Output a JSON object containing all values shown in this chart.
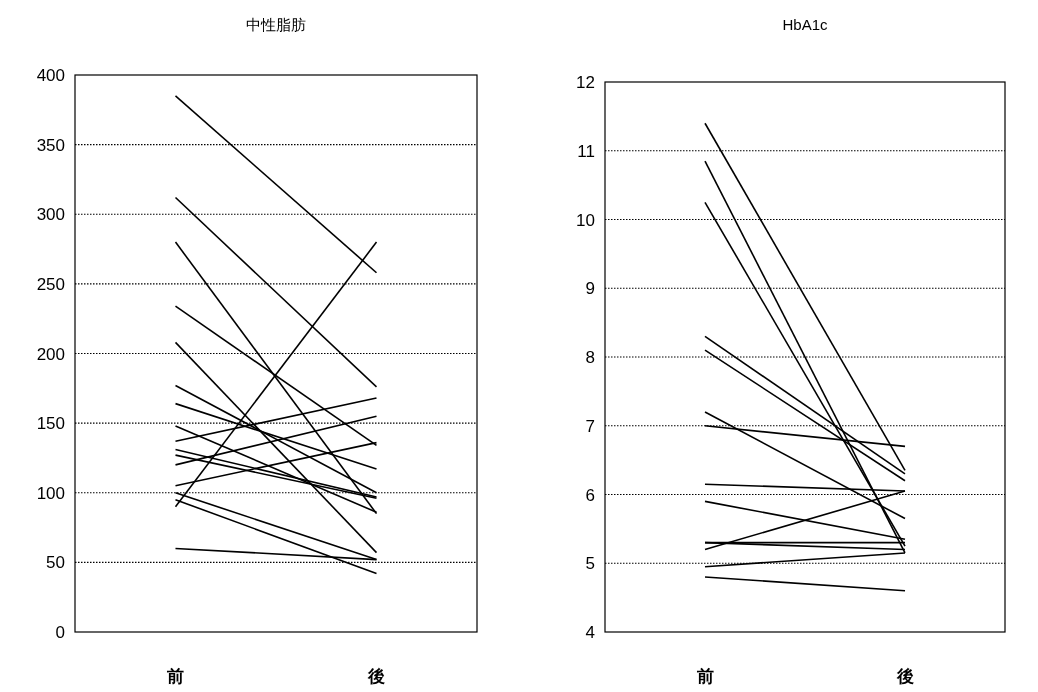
{
  "chart_data": [
    {
      "type": "line",
      "title": "中性脂肪",
      "categories": [
        "前",
        "後"
      ],
      "ylim": [
        0,
        400
      ],
      "yticks": [
        0,
        50,
        100,
        150,
        200,
        250,
        300,
        350,
        400
      ],
      "grid": "y",
      "series": [
        {
          "color": "#000000",
          "values": [
            385,
            258
          ]
        },
        {
          "color": "#000000",
          "values": [
            312,
            176
          ]
        },
        {
          "color": "#000000",
          "values": [
            280,
            85
          ]
        },
        {
          "color": "#000000",
          "values": [
            234,
            134
          ]
        },
        {
          "color": "#000000",
          "values": [
            208,
            57
          ]
        },
        {
          "color": "#000000",
          "values": [
            177,
            100
          ]
        },
        {
          "color": "#000000",
          "values": [
            164,
            117
          ]
        },
        {
          "color": "#000000",
          "values": [
            148,
            86
          ]
        },
        {
          "color": "#000000",
          "values": [
            137,
            168
          ]
        },
        {
          "color": "#000000",
          "values": [
            131,
            97
          ]
        },
        {
          "color": "#000000",
          "values": [
            127,
            96
          ]
        },
        {
          "color": "#000000",
          "values": [
            120,
            155
          ]
        },
        {
          "color": "#000000",
          "values": [
            105,
            136
          ]
        },
        {
          "color": "#000000",
          "values": [
            100,
            52
          ]
        },
        {
          "color": "#000000",
          "values": [
            95,
            42
          ]
        },
        {
          "color": "#000000",
          "values": [
            90,
            280
          ]
        },
        {
          "color": "#000000",
          "values": [
            60,
            52
          ]
        }
      ]
    },
    {
      "type": "line",
      "title": "HbA1c",
      "categories": [
        "前",
        "後"
      ],
      "ylim": [
        4,
        12
      ],
      "yticks": [
        4,
        5,
        6,
        7,
        8,
        9,
        10,
        11,
        12
      ],
      "grid": "y",
      "series": [
        {
          "color": "#000000",
          "values": [
            11.4,
            6.35
          ]
        },
        {
          "color": "#000000",
          "values": [
            10.85,
            5.15
          ]
        },
        {
          "color": "#000000",
          "values": [
            10.25,
            5.25
          ]
        },
        {
          "color": "#000000",
          "values": [
            8.3,
            6.3
          ]
        },
        {
          "color": "#000000",
          "values": [
            8.1,
            6.2
          ]
        },
        {
          "color": "#000000",
          "values": [
            7.2,
            5.65
          ]
        },
        {
          "color": "#000000",
          "values": [
            7.0,
            6.7
          ]
        },
        {
          "color": "#000000",
          "values": [
            6.15,
            6.05
          ]
        },
        {
          "color": "#000000",
          "values": [
            5.9,
            5.35
          ]
        },
        {
          "color": "#000000",
          "values": [
            5.3,
            5.3
          ]
        },
        {
          "color": "#000000",
          "values": [
            5.3,
            5.2
          ]
        },
        {
          "color": "#000000",
          "values": [
            5.2,
            6.05
          ]
        },
        {
          "color": "#000000",
          "values": [
            4.95,
            5.15
          ]
        },
        {
          "color": "#000000",
          "values": [
            4.8,
            4.6
          ]
        }
      ]
    }
  ]
}
